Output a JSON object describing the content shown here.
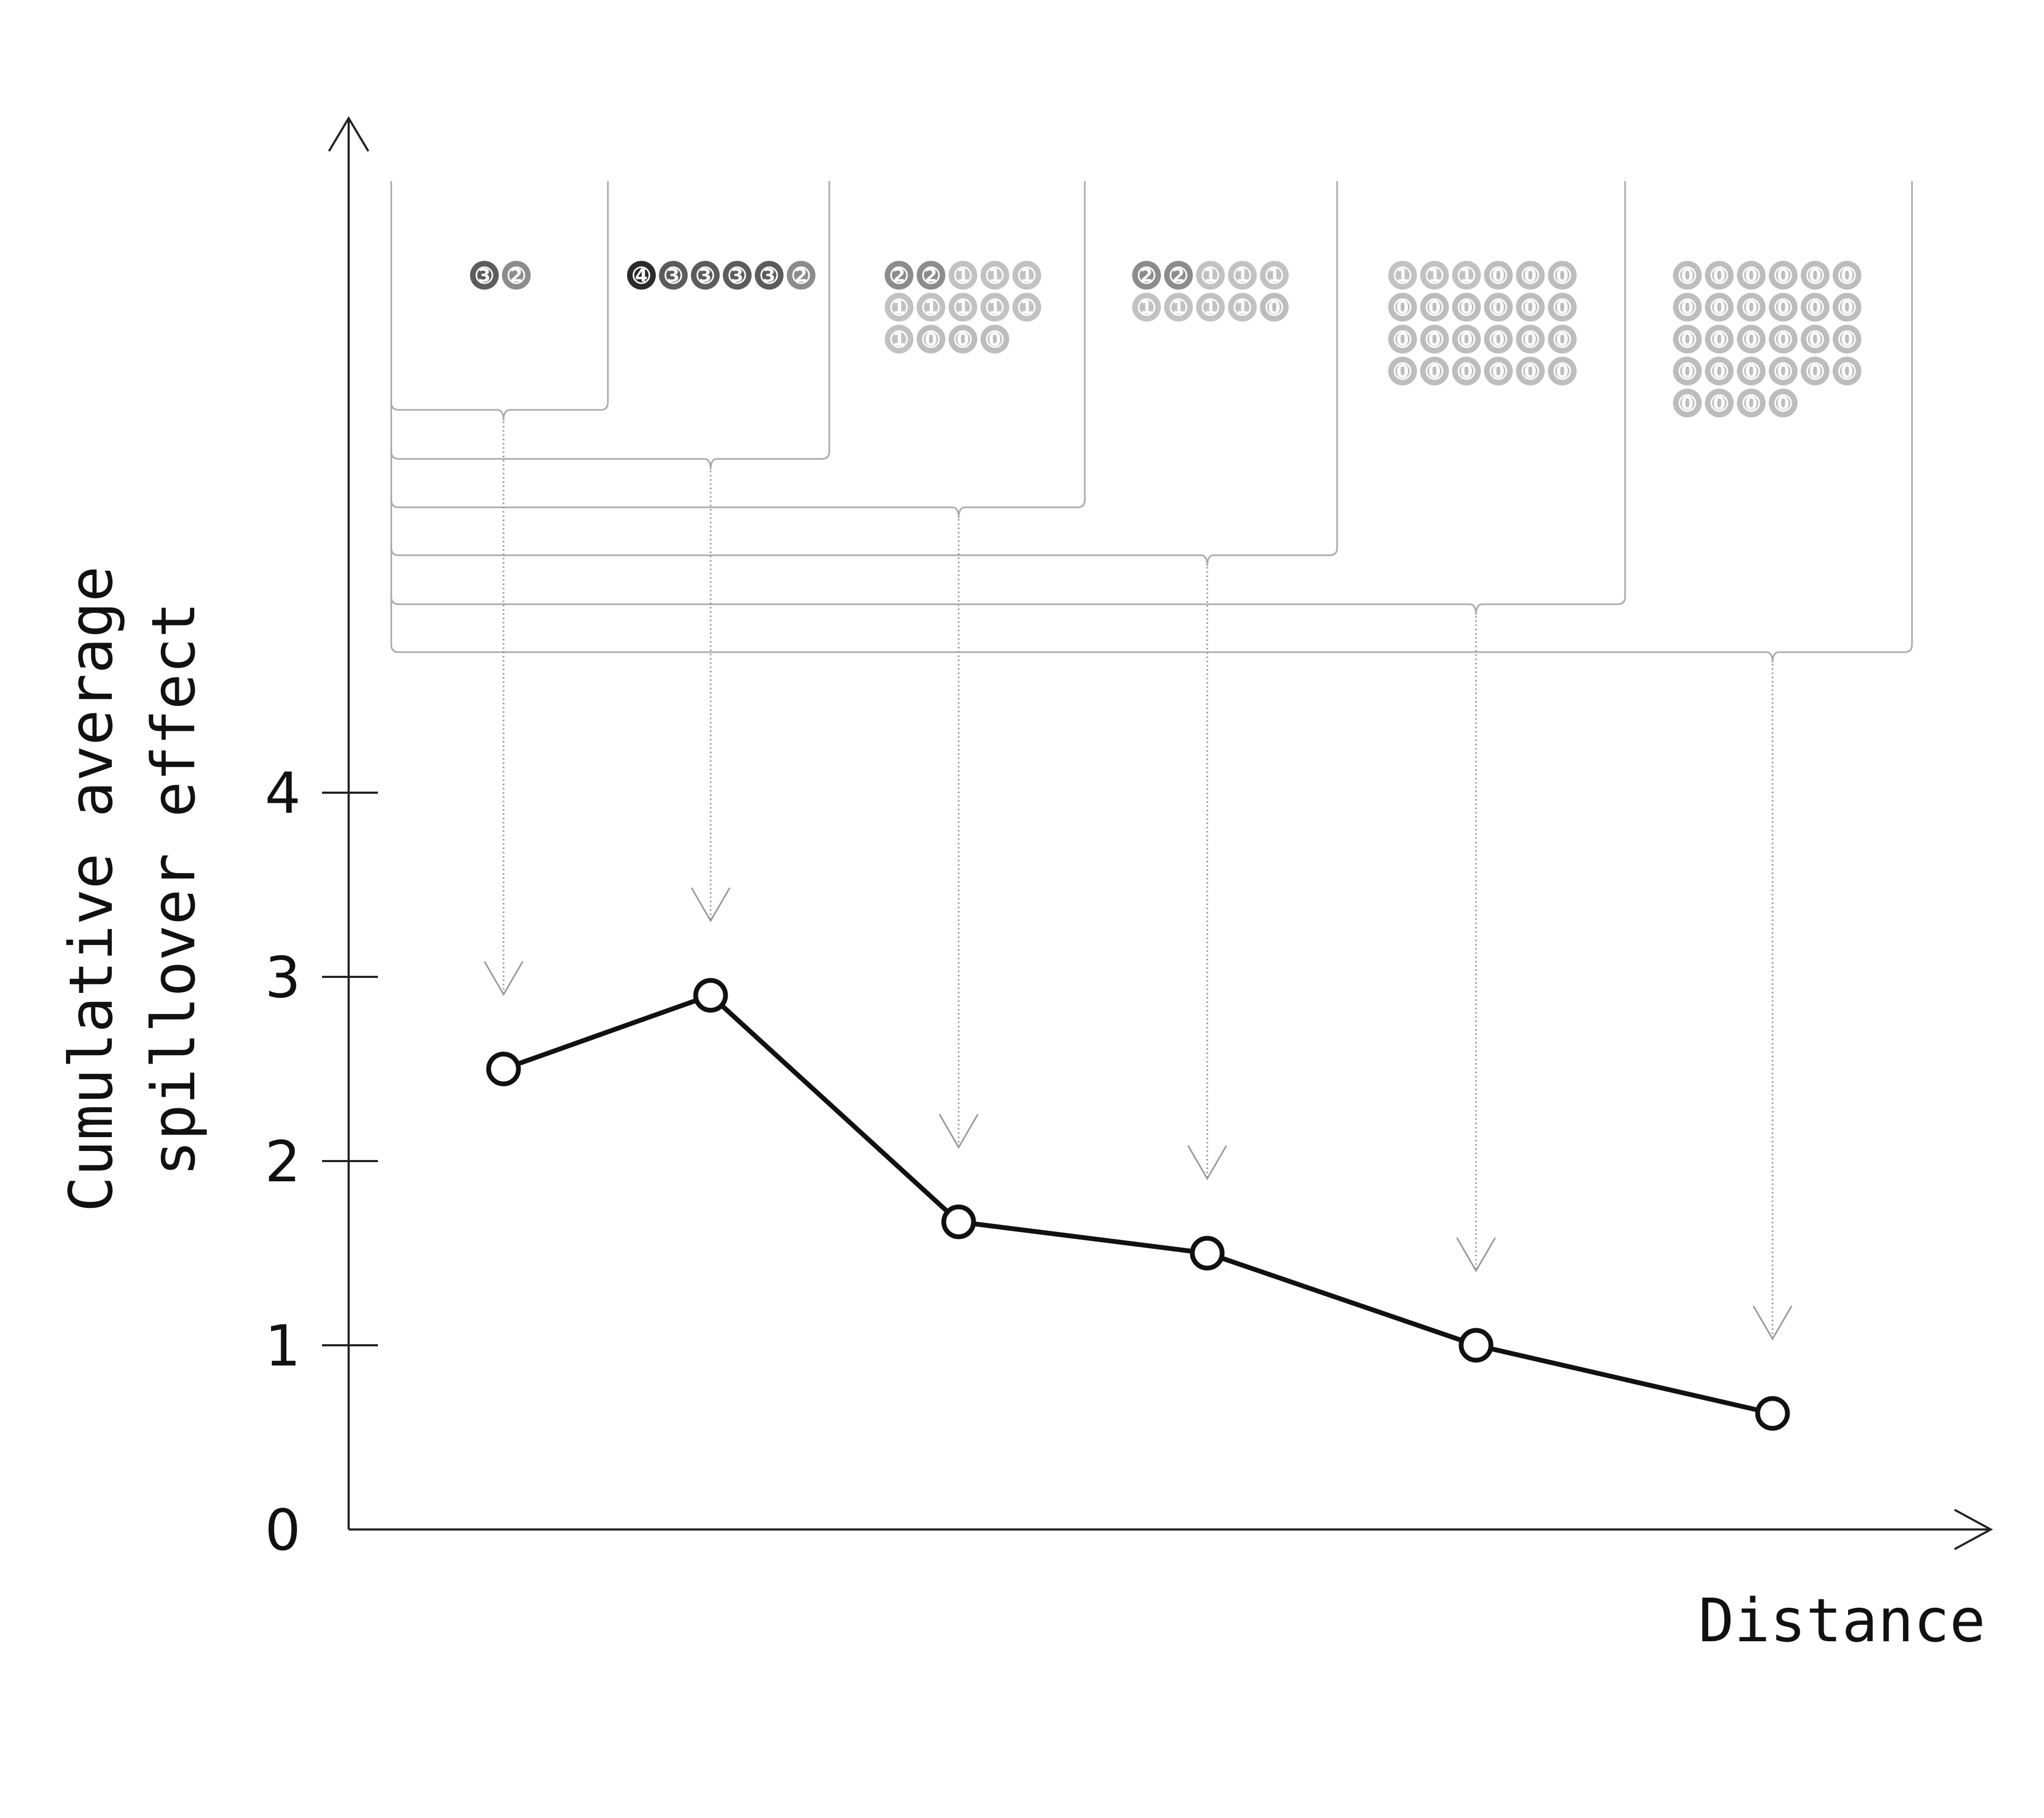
{
  "chart_data": {
    "type": "line",
    "title": "",
    "xlabel": "Distance",
    "ylabel_lines": [
      "Cumulative average",
      "spillover effect"
    ],
    "ylim": [
      0,
      4
    ],
    "y_ticks": [
      "0",
      "1",
      "2",
      "3",
      "4"
    ],
    "x_axis_tick_labels": false,
    "grid": false,
    "legend": "none",
    "series": [
      {
        "values": [
          2.5,
          2.9,
          1.67,
          1.5,
          1.0,
          0.63
        ]
      }
    ],
    "groups": [
      {
        "items": [
          3,
          2
        ]
      },
      {
        "items": [
          4,
          3,
          3,
          3,
          3,
          2
        ]
      },
      {
        "items": [
          2,
          2,
          1,
          1,
          1,
          1,
          1,
          1,
          1,
          1,
          1,
          0,
          0,
          0
        ]
      },
      {
        "items": [
          2,
          2,
          1,
          1,
          1,
          1,
          1,
          1,
          1,
          0
        ]
      },
      {
        "items": [
          1,
          1,
          1,
          0,
          0,
          0,
          0,
          0,
          0,
          0,
          0,
          0,
          0,
          0,
          0,
          0,
          0,
          0,
          0,
          0,
          0,
          0,
          0,
          0
        ]
      },
      {
        "items": [
          0,
          0,
          0,
          0,
          0,
          0,
          0,
          0,
          0,
          0,
          0,
          0,
          0,
          0,
          0,
          0,
          0,
          0,
          0,
          0,
          0,
          0,
          0,
          0,
          0,
          0,
          0,
          0
        ]
      }
    ],
    "value_colors": {
      "4": "#2b2b2b",
      "3": "#5c5c5c",
      "2": "#8c8c8c",
      "1": "#c2c2c2",
      "0": "#bdbdbd"
    }
  }
}
